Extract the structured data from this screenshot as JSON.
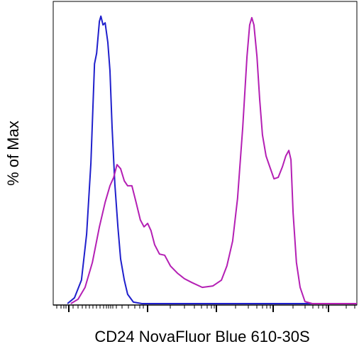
{
  "chart_data": {
    "type": "line",
    "x_label": "CD24 NovaFluor Blue 610-30S",
    "y_label": "% of Max",
    "xlim": [
      0,
      100
    ],
    "ylim": [
      0,
      100
    ],
    "series": [
      {
        "color": "#1f1fcc",
        "x": [
          4.7,
          7.0,
          9.3,
          11.0,
          12.4,
          13.6,
          14.3,
          15.2,
          15.7,
          16.4,
          17.1,
          18.0,
          18.7,
          19.4,
          20.3,
          21.3,
          22.2,
          23.4,
          24.5,
          26.4,
          29.2,
          100
        ],
        "values": [
          0.5,
          2.5,
          8.6,
          24.5,
          49.0,
          83.3,
          87.0,
          98.0,
          99.8,
          96.8,
          97.5,
          90.7,
          80.9,
          61.3,
          41.7,
          26.9,
          15.9,
          8.6,
          3.7,
          1.0,
          0.5,
          0.5
        ]
      },
      {
        "color": "#b41fb4",
        "x": [
          5.8,
          8.2,
          10.5,
          12.9,
          15.2,
          17.1,
          18.7,
          19.9,
          21.0,
          22.2,
          23.4,
          24.5,
          25.9,
          27.3,
          28.7,
          29.9,
          31.1,
          32.2,
          33.4,
          35.0,
          36.7,
          38.6,
          40.9,
          43.2,
          45.6,
          49.1,
          52.6,
          55.4,
          57.2,
          59.1,
          60.7,
          62.4,
          63.8,
          64.7,
          65.4,
          66.1,
          67.1,
          68.0,
          68.9,
          70.1,
          71.3,
          72.7,
          74.1,
          75.5,
          76.6,
          77.6,
          78.3,
          79.0,
          80.1,
          81.3,
          82.9,
          85.3,
          100
        ],
        "values": [
          0.5,
          2.0,
          6.1,
          14.7,
          27.0,
          35.5,
          41.2,
          44.1,
          48.5,
          47.1,
          42.9,
          41.2,
          41.2,
          35.5,
          29.4,
          27.0,
          28.2,
          25.7,
          20.8,
          17.6,
          17.2,
          13.5,
          11.0,
          9.1,
          7.8,
          6.1,
          6.6,
          8.6,
          13.5,
          22.1,
          36.8,
          61.3,
          85.8,
          96.8,
          99.3,
          96.8,
          85.8,
          71.1,
          58.8,
          51.5,
          47.8,
          43.6,
          44.1,
          47.8,
          51.5,
          53.4,
          50.2,
          31.9,
          14.7,
          6.1,
          1.2,
          0.5,
          0.5
        ]
      }
    ]
  }
}
